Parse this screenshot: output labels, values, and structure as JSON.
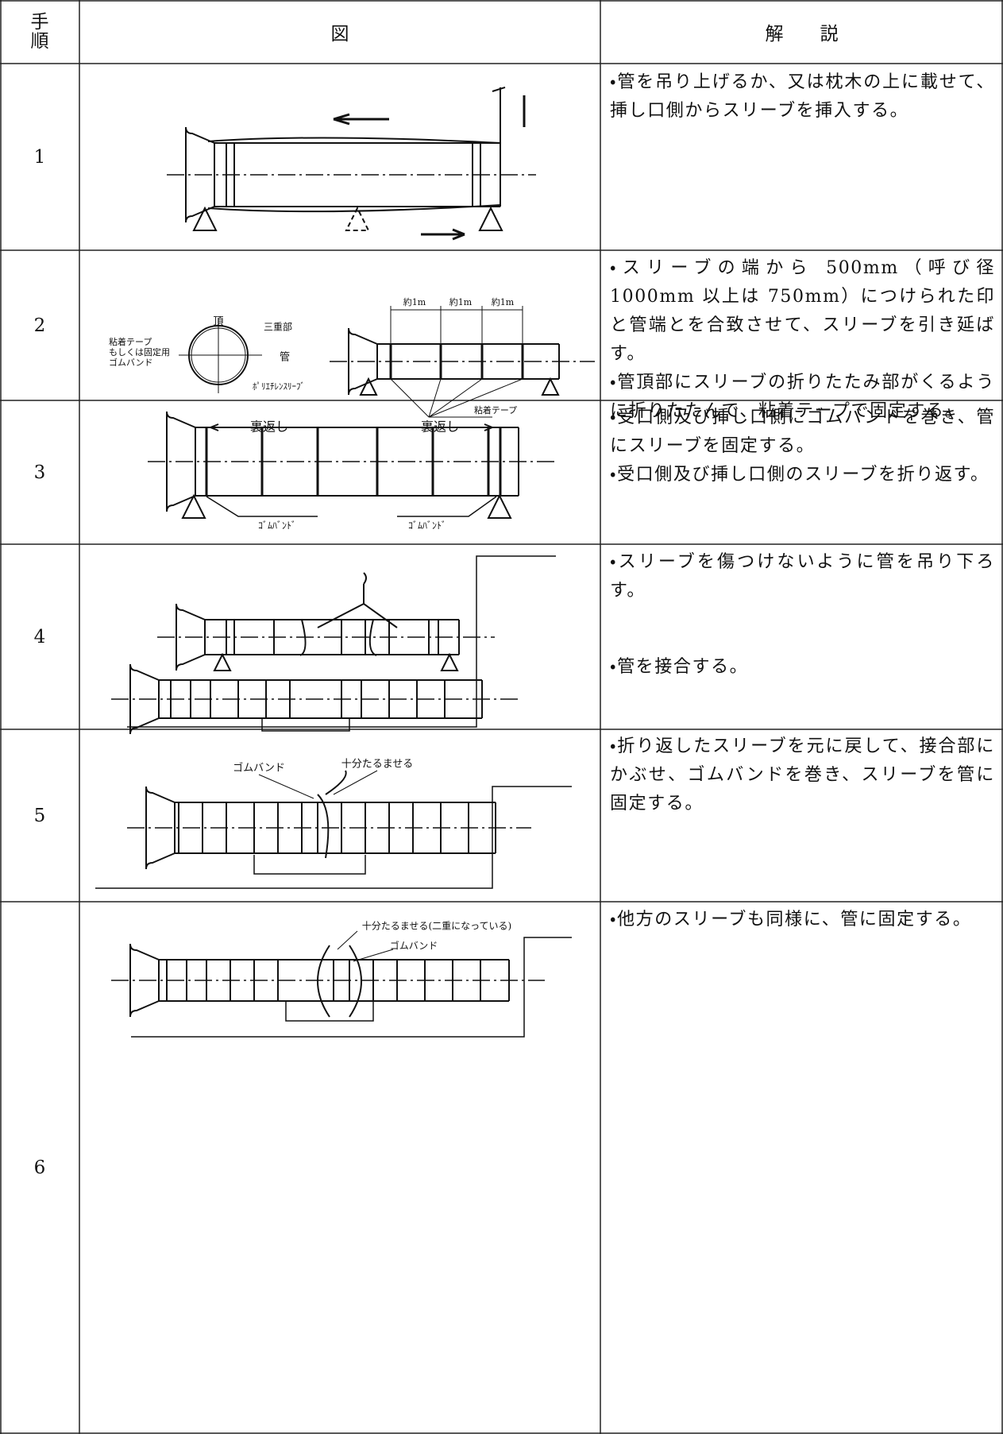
{
  "header": {
    "step": "手順",
    "figure": "図",
    "description": "解　　説"
  },
  "rows": [
    {
      "step": "1",
      "description": [
        "・管を吊り上げるか、又は枕木の上に載せて、挿し口側からスリーブを挿入する。"
      ],
      "figure_labels": []
    },
    {
      "step": "2",
      "description": [
        "・スリーブの端から 500mm（呼び径 1000mm 以上は 750mm）につけられた印と管端とを合致させて、スリーブを引き延ばす。",
        "・管頂部にスリーブの折りたたみ部がくるように折りたたんで、粘着テープで固定する。"
      ],
      "figure_labels": [
        "頂",
        "三重部",
        "粘着テープ",
        "もしくは固定用",
        "ゴムバンド",
        "管",
        "ﾎﾟﾘｴﾁﾚﾝｽﾘｰﾌﾞ",
        "約1m",
        "約1m",
        "約1m",
        "粘着テープ"
      ]
    },
    {
      "step": "3",
      "description": [
        "・受口側及び挿し口側にゴムバンドを巻き、管にスリーブを固定する。",
        "・受口側及び挿し口側のスリーブを折り返す。"
      ],
      "figure_labels": [
        "裏返し",
        "裏返し",
        "ｺﾞﾑﾊﾞﾝﾄﾞ",
        "ｺﾞﾑﾊﾞﾝﾄﾞ"
      ]
    },
    {
      "step": "4",
      "description": [
        "・スリーブを傷つけないように管を吊り下ろす。",
        "・管を接合する。"
      ],
      "figure_labels": []
    },
    {
      "step": "5",
      "description": [
        "・折り返したスリーブを元に戻して、接合部にかぶせ、ゴムバンドを巻き、スリーブを管に固定する。"
      ],
      "figure_labels": [
        "ゴムバンド",
        "十分たるませる"
      ]
    },
    {
      "step": "6",
      "description": [
        "・他方のスリーブも同様に、管に固定する。"
      ],
      "figure_labels": [
        "十分たるませる(二重になっている)",
        "ゴムバンド"
      ]
    }
  ]
}
